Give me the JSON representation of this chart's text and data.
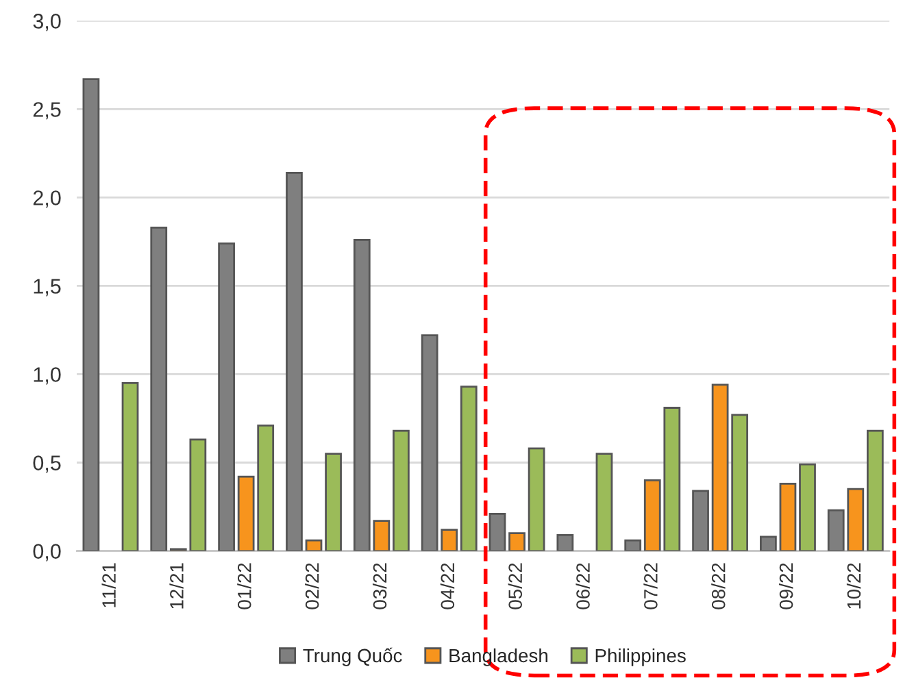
{
  "chart_data": {
    "type": "bar",
    "categories": [
      "11/21",
      "12/21",
      "01/22",
      "02/22",
      "03/22",
      "04/22",
      "05/22",
      "06/22",
      "07/22",
      "08/22",
      "09/22",
      "10/22"
    ],
    "series": [
      {
        "name": "Trung Quốc",
        "color": "#7f7f7f",
        "values": [
          2.67,
          1.83,
          1.74,
          2.14,
          1.76,
          1.22,
          0.21,
          0.09,
          0.06,
          0.34,
          0.08,
          0.23
        ]
      },
      {
        "name": "Bangladesh",
        "color": "#f7941d",
        "values": [
          null,
          0.01,
          0.42,
          0.06,
          0.17,
          0.12,
          0.1,
          null,
          0.4,
          0.94,
          0.38,
          0.35
        ]
      },
      {
        "name": "Philippines",
        "color": "#9bbb59",
        "values": [
          0.95,
          0.63,
          0.71,
          0.55,
          0.68,
          0.93,
          0.58,
          0.55,
          0.81,
          0.77,
          0.49,
          0.68
        ]
      }
    ],
    "ylim": [
      0,
      3.0
    ],
    "yticks": [
      {
        "value": 0,
        "label": "0,0"
      },
      {
        "value": 0.5,
        "label": "0,5"
      },
      {
        "value": 1.0,
        "label": "1,0"
      },
      {
        "value": 1.5,
        "label": "1,5"
      },
      {
        "value": 2.0,
        "label": "2,0"
      },
      {
        "value": 2.5,
        "label": "2,5"
      },
      {
        "value": 3.0,
        "label": "3,0"
      }
    ],
    "grid": "y",
    "legend": "bottom"
  }
}
